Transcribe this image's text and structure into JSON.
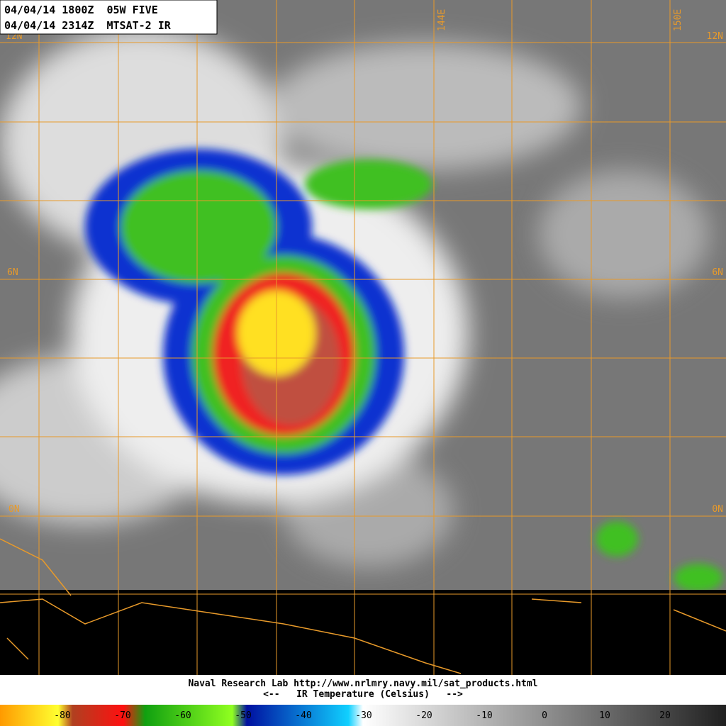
{
  "header": {
    "line1": "04/04/14 1800Z  05W FIVE",
    "line2": "04/04/14 2314Z  MTSAT-2 IR"
  },
  "grid_labels": {
    "lat_12n": "12N",
    "lat_6n": "6N",
    "lat_0n": "0N",
    "lon_144e": "144E",
    "lon_150e": "150E"
  },
  "footer": {
    "credit": "Naval Research Lab http://www.nrlmry.navy.mil/sat_products.html",
    "legend_title": "<--   IR Temperature (Celsius)   -->"
  },
  "colorbar_labels": [
    -80,
    -70,
    -60,
    -50,
    -40,
    -30,
    -20,
    -10,
    0,
    10,
    20
  ]
}
